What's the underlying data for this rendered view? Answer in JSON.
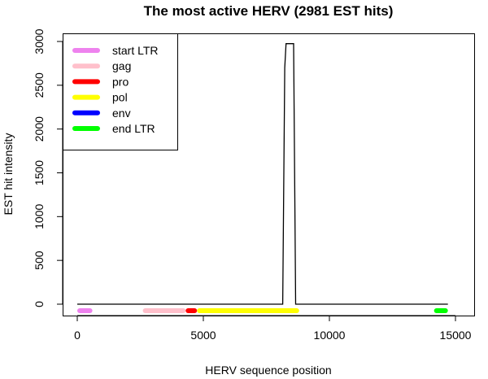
{
  "chart_data": {
    "type": "line",
    "title": "The most active HERV (2981 EST hits)",
    "xlabel": "HERV sequence position",
    "ylabel": "EST hit intensity",
    "xlim": [
      -500,
      15500
    ],
    "ylim": [
      -110,
      3050
    ],
    "x_ticks": [
      0,
      5000,
      10000,
      15000
    ],
    "y_ticks": [
      0,
      500,
      1000,
      1500,
      2000,
      2500,
      3000
    ],
    "grid": false,
    "legend_position": "top-left",
    "series": [
      {
        "name": "EST hit intensity",
        "color": "#000000",
        "x": [
          0,
          8150,
          8230,
          8280,
          8380,
          8580,
          8660,
          14700
        ],
        "y": [
          0,
          0,
          2700,
          2975,
          2975,
          2975,
          0,
          0
        ]
      }
    ],
    "regions": [
      {
        "name": "start LTR",
        "color": "#EE82EE",
        "start": 0,
        "end": 600
      },
      {
        "name": "gag",
        "color": "#FFC0CB",
        "start": 2600,
        "end": 4300
      },
      {
        "name": "pro",
        "color": "#FF0000",
        "start": 4300,
        "end": 4750
      },
      {
        "name": "pol",
        "color": "#FFFF00",
        "start": 4750,
        "end": 8800
      },
      {
        "name": "env",
        "color": "#0000FF",
        "start": null,
        "end": null
      },
      {
        "name": "end LTR",
        "color": "#00FF00",
        "start": 14150,
        "end": 14700
      }
    ],
    "legend": [
      {
        "label": "start LTR",
        "color": "#EE82EE"
      },
      {
        "label": "gag",
        "color": "#FFC0CB"
      },
      {
        "label": "pro",
        "color": "#FF0000"
      },
      {
        "label": "pol",
        "color": "#FFFF00"
      },
      {
        "label": "env",
        "color": "#0000FF"
      },
      {
        "label": "end LTR",
        "color": "#00FF00"
      }
    ]
  }
}
